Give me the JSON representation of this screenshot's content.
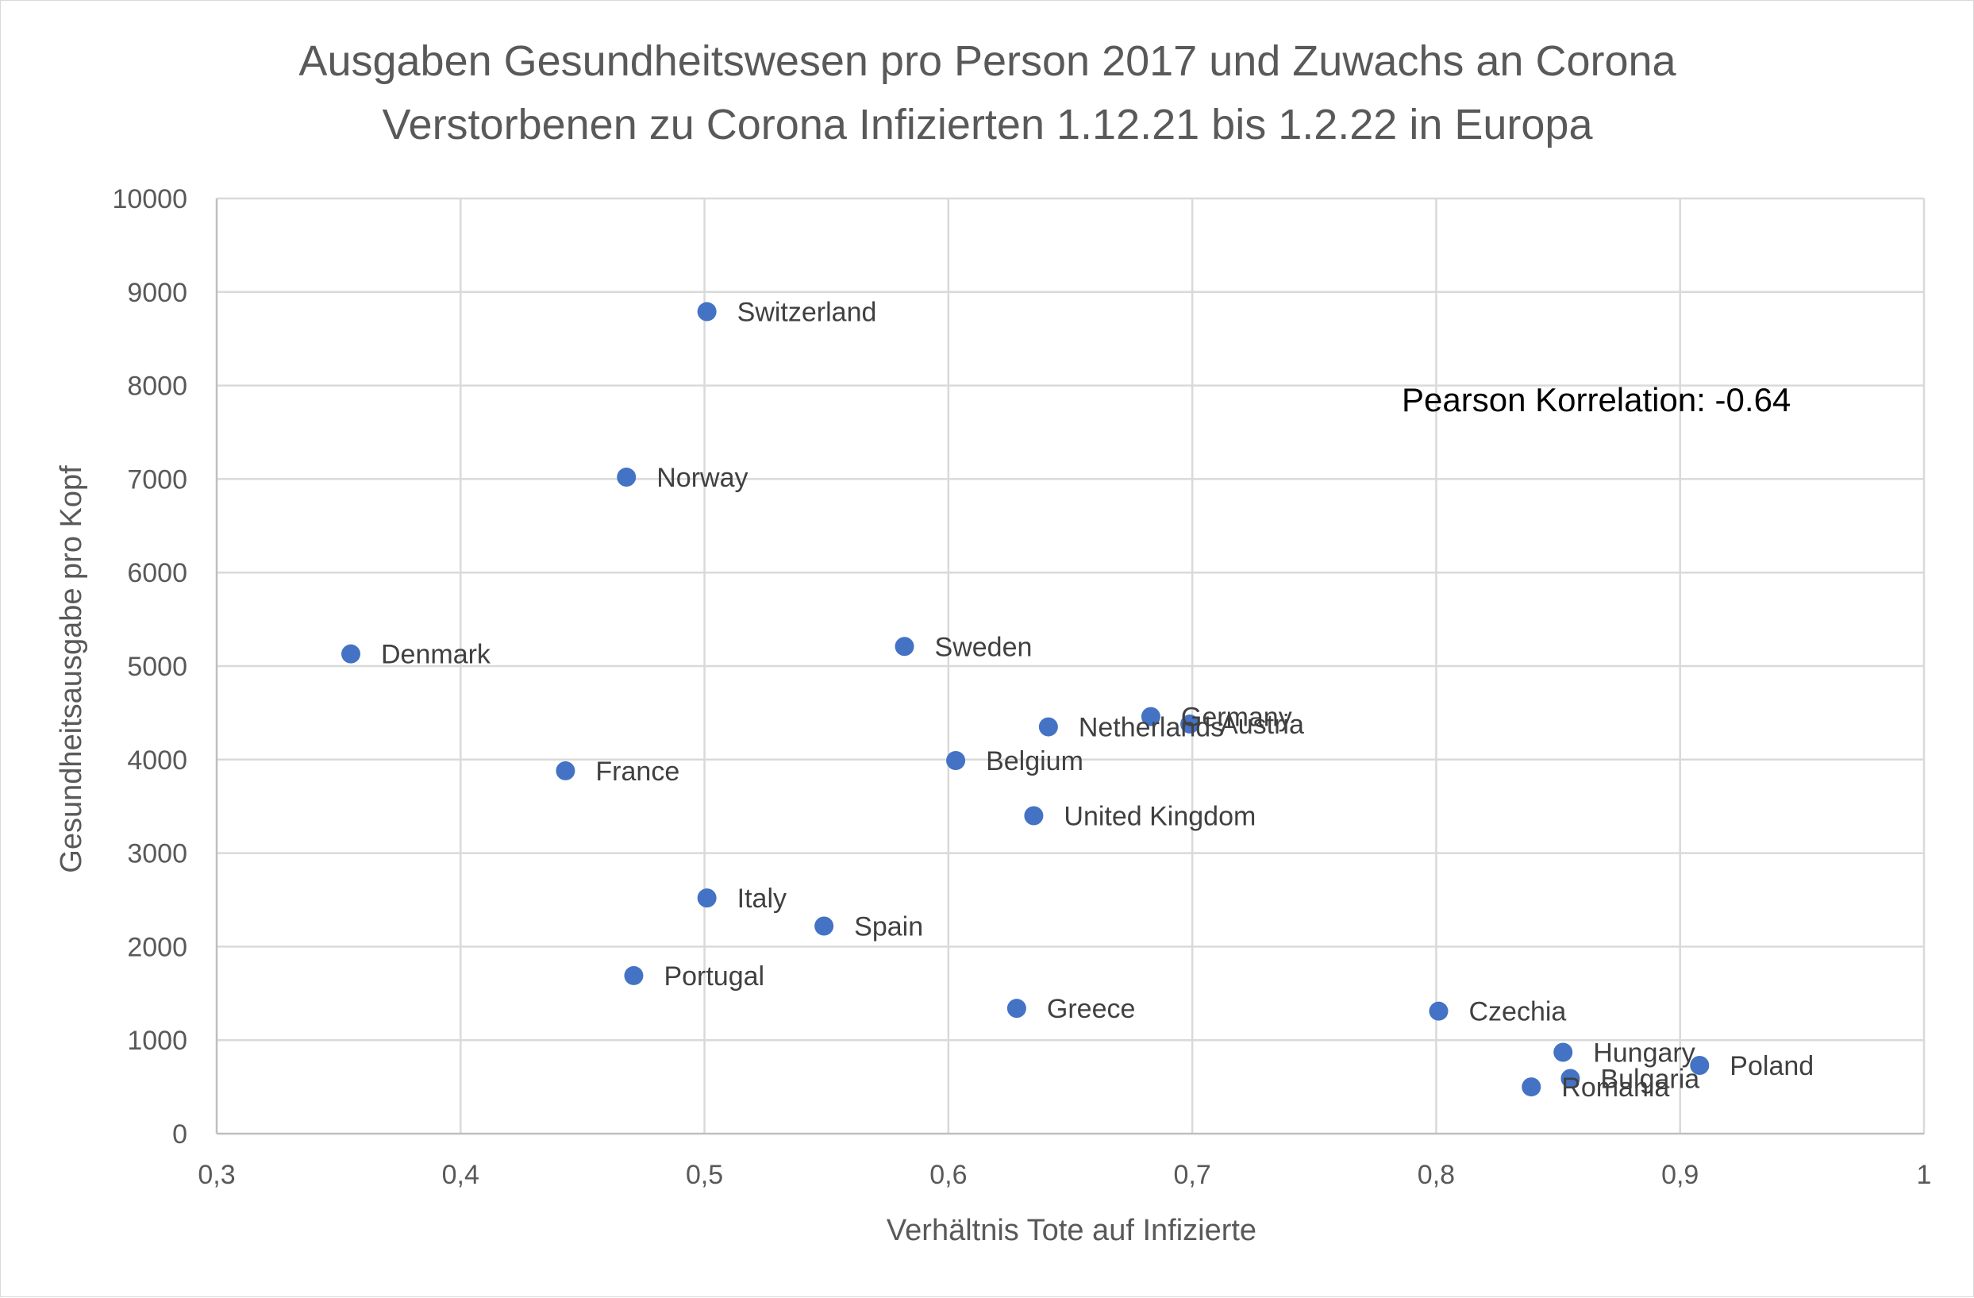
{
  "chart_data": {
    "type": "scatter",
    "title": [
      "Ausgaben Gesundheitswesen pro Person 2017 und Zuwachs an Corona",
      "Verstorbenen zu Corona Infizierten 1.12.21 bis 1.2.22 in Europa"
    ],
    "xlabel": "Verhältnis Tote auf Infizierte",
    "ylabel": "Gesundheitsausgabe pro Kopf",
    "xlim": [
      0.3,
      1
    ],
    "ylim": [
      0,
      10000
    ],
    "x_ticks": [
      "0,3",
      "0,4",
      "0,5",
      "0,6",
      "0,7",
      "0,8",
      "0,9",
      "1"
    ],
    "y_ticks": [
      "0",
      "1000",
      "2000",
      "3000",
      "4000",
      "5000",
      "6000",
      "7000",
      "8000",
      "9000",
      "10000"
    ],
    "grid": true,
    "series_color": "#4472c4",
    "annotation": "Pearson Korrelation:  -0.64",
    "points": [
      {
        "label": "Switzerland",
        "x": 0.501,
        "y": 8790
      },
      {
        "label": "Norway",
        "x": 0.468,
        "y": 7020
      },
      {
        "label": "Denmark",
        "x": 0.355,
        "y": 5130
      },
      {
        "label": "Sweden",
        "x": 0.582,
        "y": 5210
      },
      {
        "label": "Germany",
        "x": 0.683,
        "y": 4460
      },
      {
        "label": "Austria",
        "x": 0.699,
        "y": 4380
      },
      {
        "label": "Netherlands",
        "x": 0.641,
        "y": 4350
      },
      {
        "label": "Belgium",
        "x": 0.603,
        "y": 3990
      },
      {
        "label": "France",
        "x": 0.443,
        "y": 3880
      },
      {
        "label": "United Kingdom",
        "x": 0.635,
        "y": 3400
      },
      {
        "label": "Italy",
        "x": 0.501,
        "y": 2520
      },
      {
        "label": "Spain",
        "x": 0.549,
        "y": 2220
      },
      {
        "label": "Portugal",
        "x": 0.471,
        "y": 1690
      },
      {
        "label": "Greece",
        "x": 0.628,
        "y": 1340
      },
      {
        "label": "Czechia",
        "x": 0.801,
        "y": 1310
      },
      {
        "label": "Hungary",
        "x": 0.852,
        "y": 870
      },
      {
        "label": "Poland",
        "x": 0.908,
        "y": 730
      },
      {
        "label": "Bulgaria",
        "x": 0.855,
        "y": 590
      },
      {
        "label": "Romania",
        "x": 0.839,
        "y": 500
      }
    ]
  }
}
